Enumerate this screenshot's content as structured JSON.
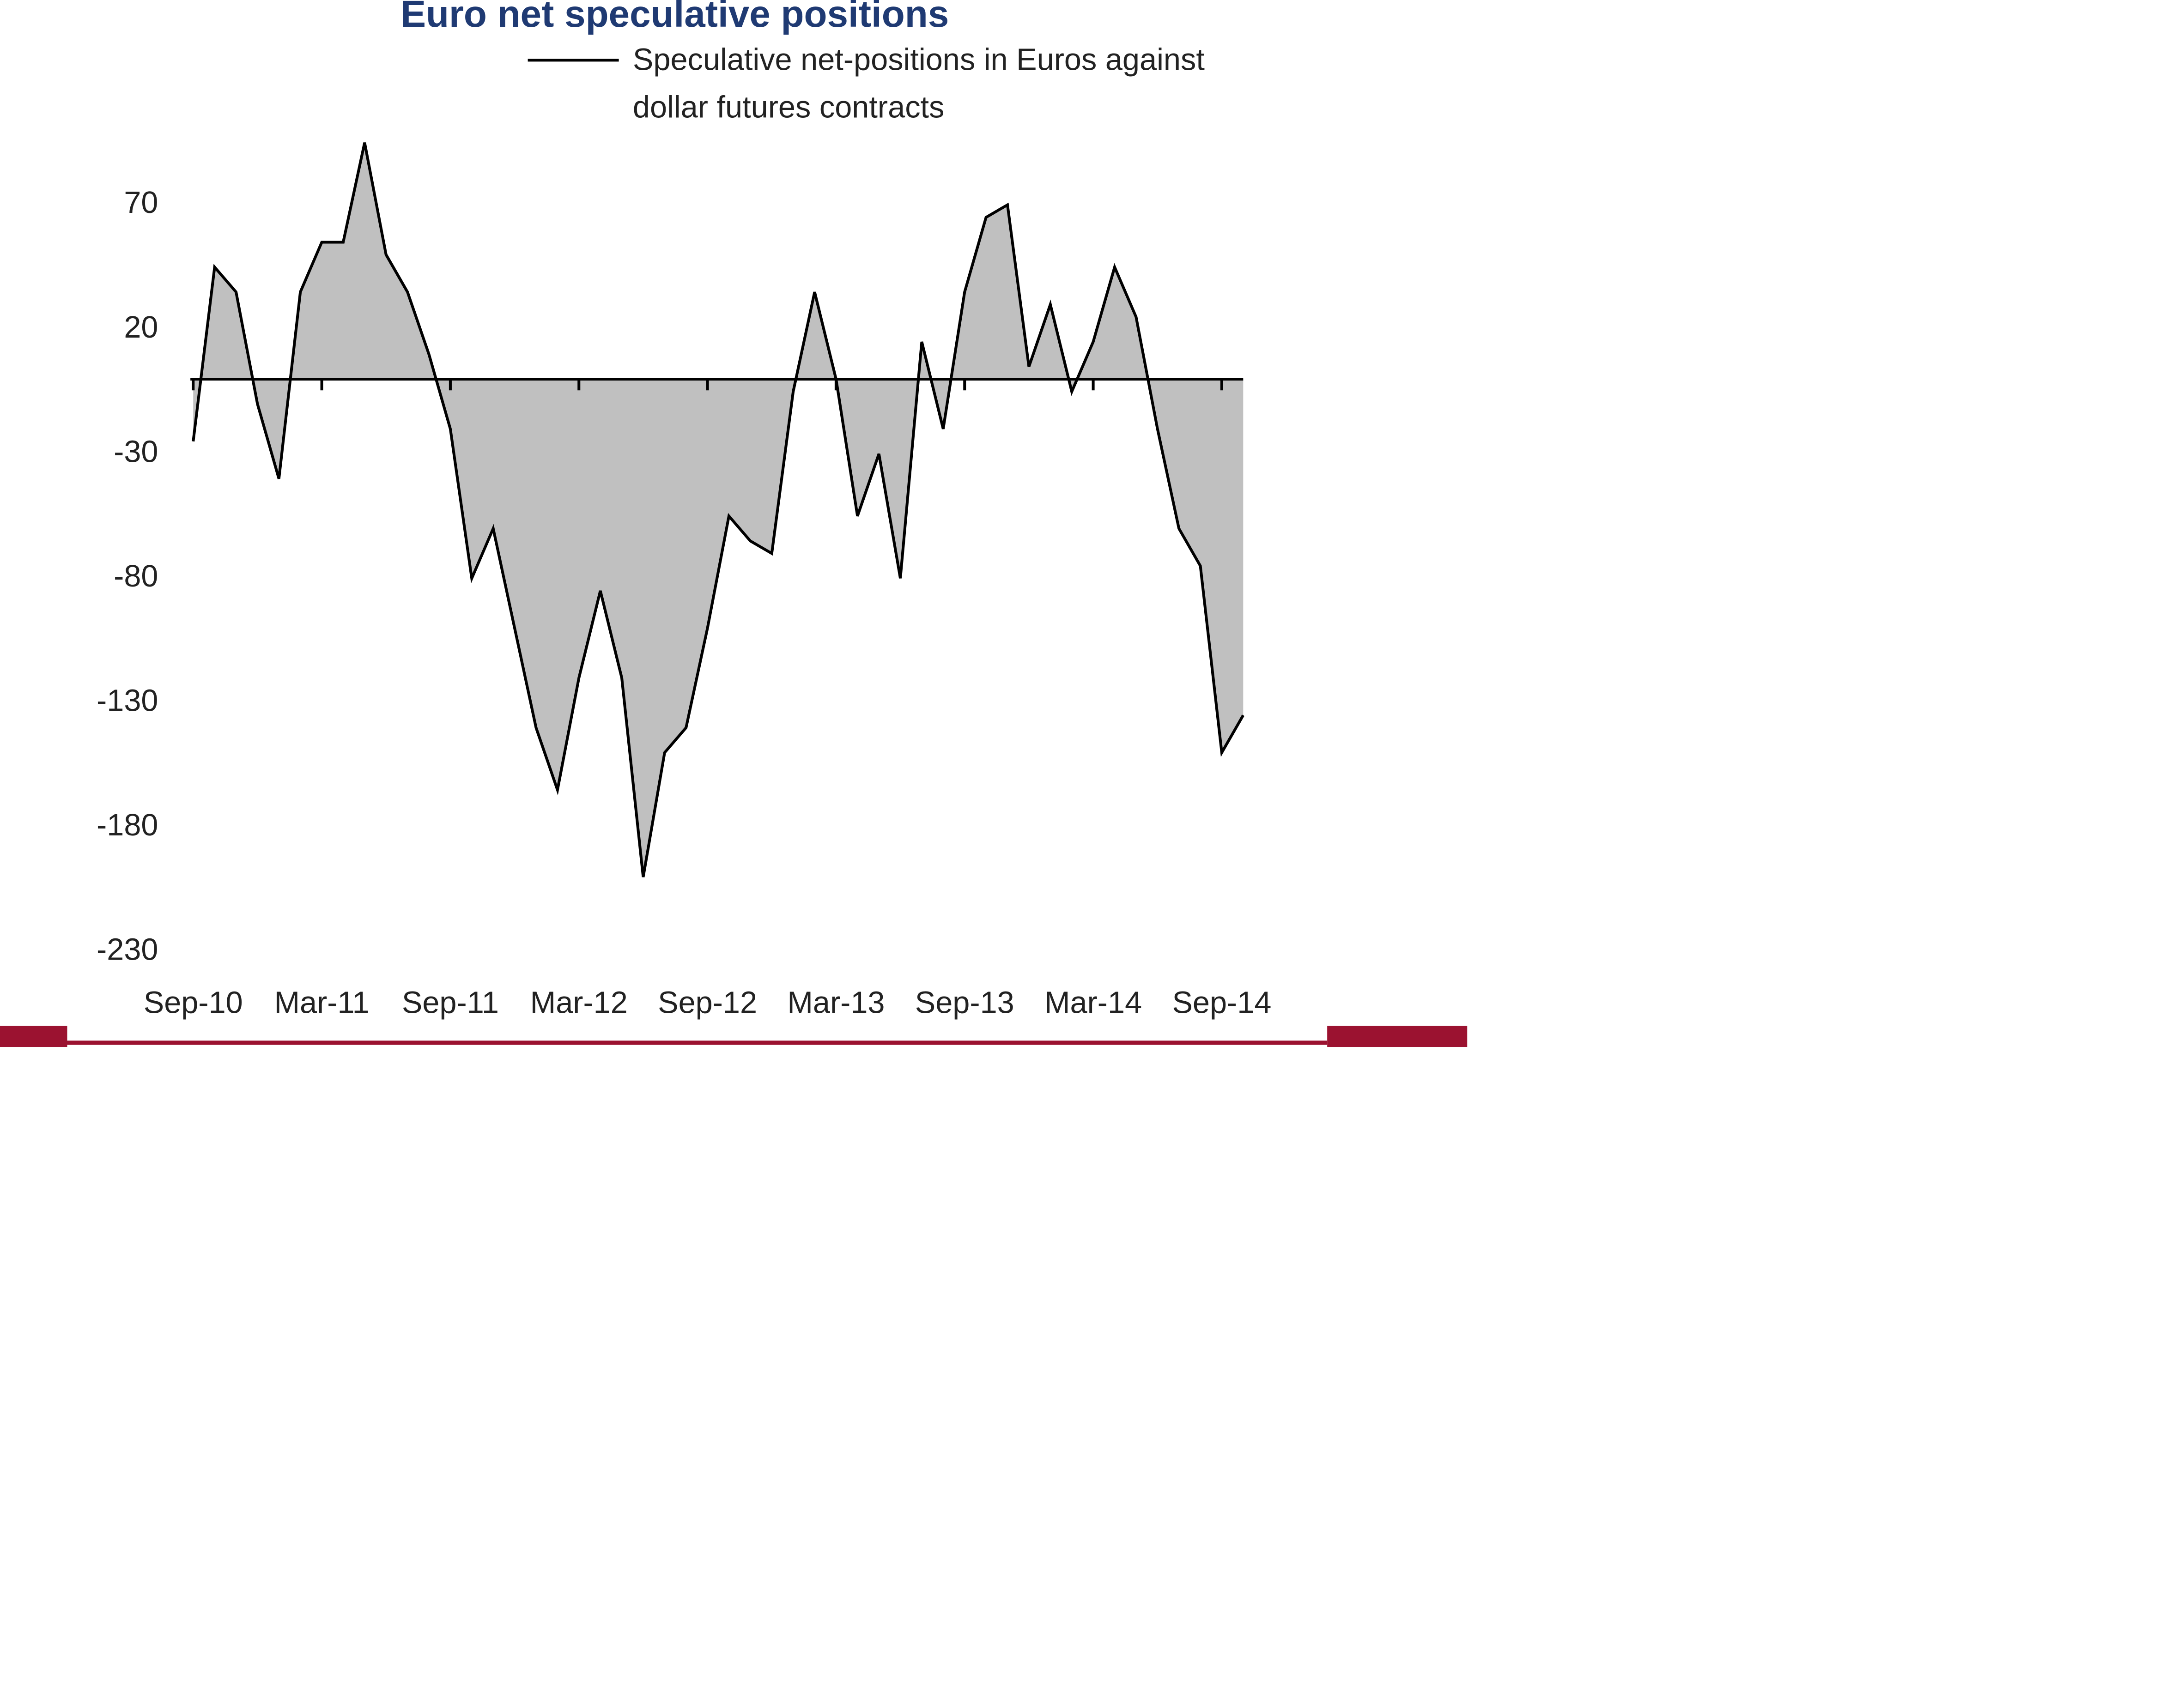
{
  "chart_data": {
    "type": "area",
    "title": "Euro net speculative positions",
    "categories": [
      "Sep-10",
      null,
      null,
      null,
      null,
      null,
      "Mar-11",
      null,
      null,
      null,
      null,
      null,
      "Sep-11",
      null,
      null,
      null,
      null,
      null,
      "Mar-12",
      null,
      null,
      null,
      null,
      null,
      "Sep-12",
      null,
      null,
      null,
      null,
      null,
      "Mar-13",
      null,
      null,
      null,
      null,
      null,
      "Sep-13",
      null,
      null,
      null,
      null,
      null,
      "Mar-14",
      null,
      null,
      null,
      null,
      null,
      "Sep-14",
      null
    ],
    "series": [
      {
        "name": "Speculative net-positions in Euros against dollar futures contracts",
        "color": "#000000",
        "fill": "#c0c0c0",
        "values": [
          -25,
          45,
          35,
          -10,
          -40,
          35,
          55,
          55,
          95,
          50,
          35,
          10,
          -20,
          -80,
          -60,
          -100,
          -140,
          -165,
          -120,
          -85,
          -120,
          -200,
          -150,
          -140,
          -100,
          -55,
          -65,
          -70,
          -5,
          35,
          0,
          -55,
          -30,
          -80,
          15,
          -20,
          35,
          65,
          70,
          5,
          30,
          -5,
          15,
          45,
          25,
          -20,
          -60,
          -75,
          -150,
          -135
        ]
      }
    ],
    "ylim": [
      -230,
      100
    ],
    "yticks": [
      70,
      20,
      -30,
      -80,
      -130,
      -180,
      -230
    ]
  }
}
